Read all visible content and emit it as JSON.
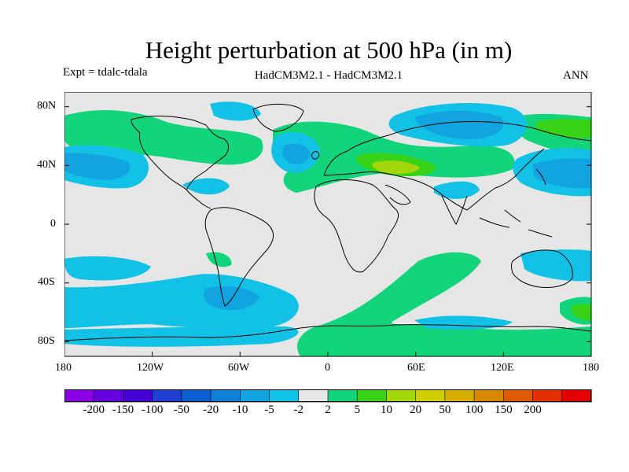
{
  "header": {
    "title": "Height perturbation at 500 hPa (in m)",
    "experiment": "Expt = tdalc-tdala",
    "model": "HadCM3M2.1 - HadCM3M2.1",
    "season": "ANN"
  },
  "map": {
    "lat_labels": [
      "80N",
      "40N",
      "0",
      "40S",
      "80S"
    ],
    "lon_labels": [
      "180",
      "120W",
      "60W",
      "0",
      "60E",
      "120E",
      "180"
    ],
    "background_color": "#e6e6e6"
  },
  "colorbar": {
    "colors": [
      "#8b00e6",
      "#6600dd",
      "#4400d5",
      "#1f3fd5",
      "#0a5fd2",
      "#0d82d8",
      "#12a4e0",
      "#11c2e6",
      "#e6e6e6",
      "#12d47a",
      "#38d316",
      "#a3d60d",
      "#d0ce00",
      "#d4ad00",
      "#d88700",
      "#df5a00",
      "#e23000",
      "#e60000"
    ],
    "labels": [
      "-200",
      "-150",
      "-100",
      "-50",
      "-20",
      "-10",
      "-5",
      "-2",
      "2",
      "5",
      "10",
      "20",
      "50",
      "100",
      "150",
      "200"
    ]
  }
}
